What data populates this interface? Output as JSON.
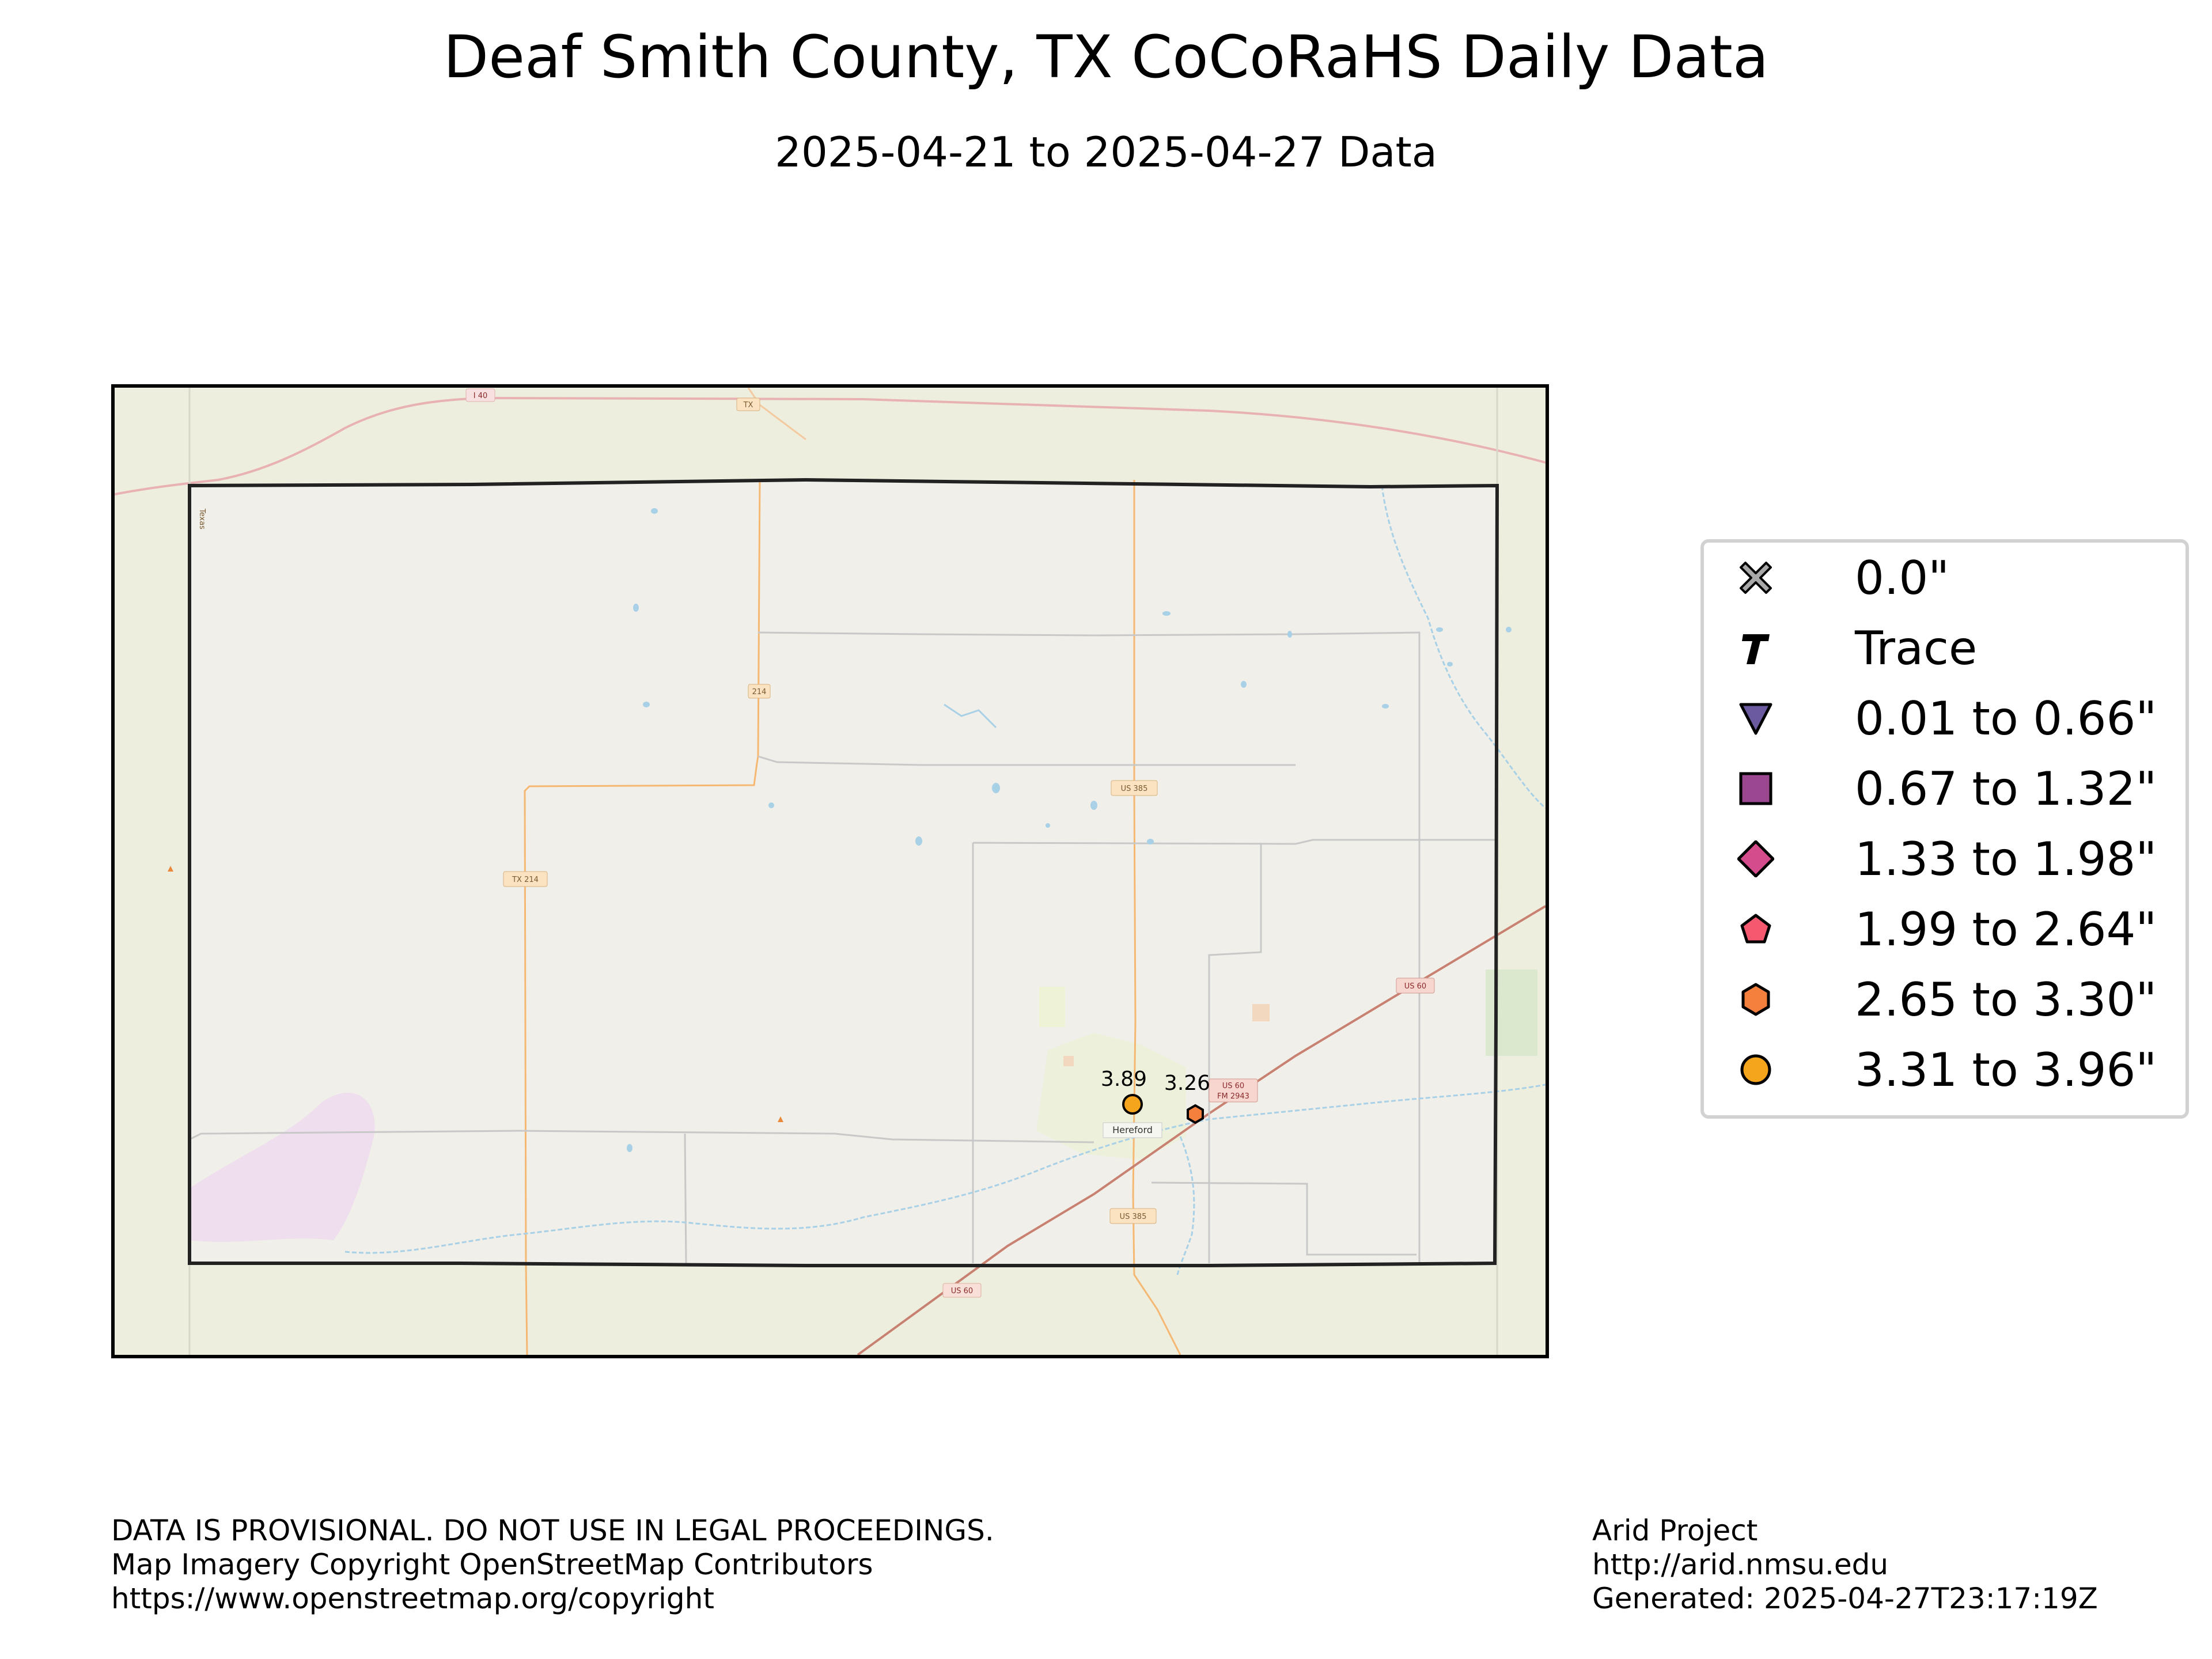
{
  "title": "Deaf Smith County, TX CoCoRaHS Daily Data",
  "subtitle": "2025-04-21 to 2025-04-27 Data",
  "map": {
    "county_outline_color": "#222222",
    "base_layer": "OpenStreetMap",
    "road_labels": {
      "tx214_upper": "214",
      "tx214": "TX 214",
      "us385_north": "US 385",
      "us385_south": "US 385",
      "us60_east": "US 60",
      "us60_town": "US 60",
      "fm2943": "FM 2943",
      "us60_southwest": "US 60",
      "tx_north": "TX",
      "i40": "I 40",
      "texas_state_line": "Texas"
    },
    "town_label": "Hereford",
    "stations": [
      {
        "value": 3.89,
        "label": "3.89",
        "category": "3.31 to 3.96\"",
        "marker": "circle",
        "color": "#f5a51c"
      },
      {
        "value": 3.26,
        "label": "3.26",
        "category": "2.65 to 3.30\"",
        "marker": "hexagon",
        "color": "#f5803e"
      }
    ]
  },
  "legend": {
    "items": [
      {
        "label": "0.0\"",
        "marker": "x-icon",
        "color": "#a8a8a8"
      },
      {
        "label": "Trace",
        "marker": "t-icon",
        "color": "#000000"
      },
      {
        "label": "0.01 to 0.66\"",
        "marker": "triangle-down-icon",
        "color": "#6c5aa0"
      },
      {
        "label": "0.67 to 1.32\"",
        "marker": "square-icon",
        "color": "#9c4891"
      },
      {
        "label": "1.33 to 1.98\"",
        "marker": "diamond-icon",
        "color": "#d44c8b"
      },
      {
        "label": "1.99 to 2.64\"",
        "marker": "pentagon-icon",
        "color": "#f5596f"
      },
      {
        "label": "2.65 to 3.30\"",
        "marker": "hexagon-icon",
        "color": "#f5803e"
      },
      {
        "label": "3.31 to 3.96\"",
        "marker": "circle-icon",
        "color": "#f5a51c"
      }
    ]
  },
  "footer_left": {
    "line1": "DATA IS PROVISIONAL. DO NOT USE IN LEGAL PROCEEDINGS.",
    "line2": "Map Imagery Copyright OpenStreetMap Contributors",
    "line3": "https://www.openstreetmap.org/copyright"
  },
  "footer_right": {
    "line1": "Arid Project",
    "line2": "http://arid.nmsu.edu",
    "line3": "Generated: 2025-04-27T23:17:19Z"
  }
}
